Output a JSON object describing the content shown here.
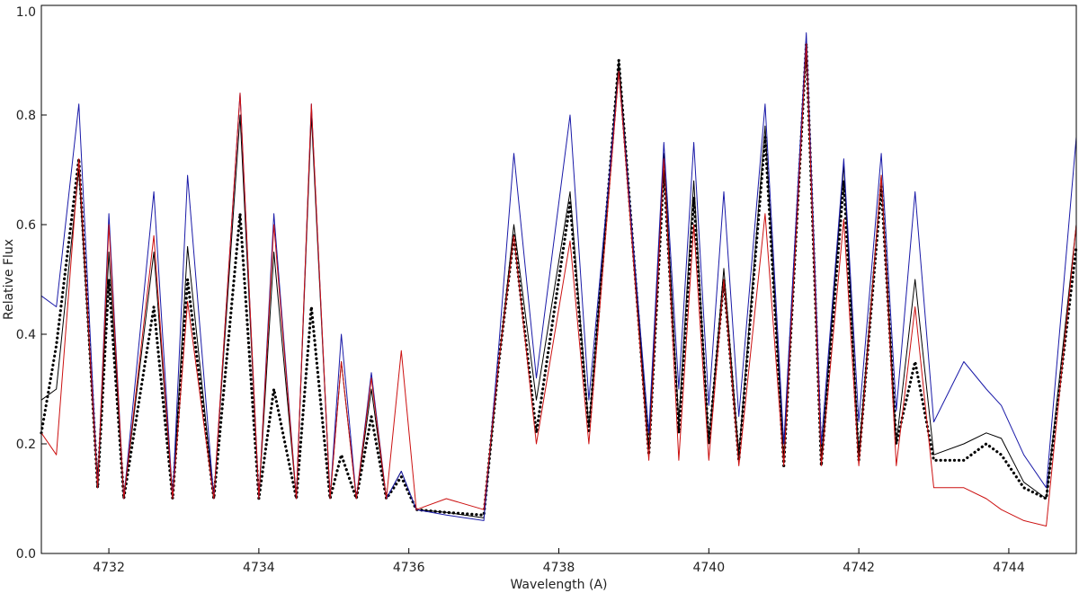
{
  "chart_data": {
    "type": "line",
    "title": "",
    "xlabel": "Wavelength (A)",
    "ylabel": "Relative Flux",
    "xlim": [
      4731.1,
      4744.9
    ],
    "ylim": [
      0.0,
      1.0
    ],
    "xticks": [
      4732,
      4734,
      4736,
      4738,
      4740,
      4742,
      4744
    ],
    "yticks": [
      0.0,
      0.2,
      0.4,
      0.6,
      0.8,
      1.0
    ],
    "ytick_labels": [
      "0.0",
      "0.2",
      "0.4",
      "0.6",
      "0.8",
      "1.0"
    ],
    "grid": false,
    "legend": "none",
    "series": [
      {
        "style": "dotted",
        "color": "#000000",
        "x": [
          4731.1,
          4731.3,
          4731.6,
          4731.85,
          4732.0,
          4732.2,
          4732.6,
          4732.85,
          4733.05,
          4733.4,
          4733.75,
          4734.0,
          4734.2,
          4734.5,
          4734.7,
          4734.95,
          4735.1,
          4735.3,
          4735.5,
          4735.7,
          4735.9,
          4736.1,
          4736.5,
          4737.0,
          4737.2,
          4737.4,
          4737.7,
          4738.15,
          4738.4,
          4738.8,
          4739.2,
          4739.4,
          4739.6,
          4739.8,
          4740.0,
          4740.2,
          4740.4,
          4740.75,
          4741.0,
          4741.3,
          4741.5,
          4741.8,
          4742.0,
          4742.3,
          4742.5,
          4742.75,
          4743.0,
          4743.4,
          4743.7,
          4743.9,
          4744.2,
          4744.5,
          4744.9
        ],
        "y": [
          0.22,
          0.38,
          0.72,
          0.12,
          0.5,
          0.1,
          0.45,
          0.1,
          0.5,
          0.1,
          0.62,
          0.1,
          0.3,
          0.1,
          0.45,
          0.1,
          0.18,
          0.1,
          0.25,
          0.1,
          0.14,
          0.08,
          0.075,
          0.07,
          0.35,
          0.58,
          0.22,
          0.64,
          0.22,
          0.9,
          0.18,
          0.7,
          0.22,
          0.65,
          0.2,
          0.5,
          0.17,
          0.76,
          0.16,
          0.93,
          0.16,
          0.68,
          0.17,
          0.67,
          0.2,
          0.35,
          0.17,
          0.17,
          0.2,
          0.18,
          0.12,
          0.1,
          0.56
        ]
      },
      {
        "style": "solid",
        "color": "#000000",
        "x": [
          4731.1,
          4731.3,
          4731.6,
          4731.85,
          4732.0,
          4732.2,
          4732.6,
          4732.85,
          4733.05,
          4733.4,
          4733.75,
          4734.0,
          4734.2,
          4734.5,
          4734.7,
          4734.95,
          4735.1,
          4735.3,
          4735.5,
          4735.7,
          4735.9,
          4736.1,
          4736.5,
          4737.0,
          4737.2,
          4737.4,
          4737.7,
          4738.15,
          4738.4,
          4738.8,
          4739.2,
          4739.4,
          4739.6,
          4739.8,
          4740.0,
          4740.2,
          4740.4,
          4740.75,
          4741.0,
          4741.3,
          4741.5,
          4741.8,
          4742.0,
          4742.3,
          4742.5,
          4742.75,
          4743.0,
          4743.4,
          4743.7,
          4743.9,
          4744.2,
          4744.5,
          4744.9
        ],
        "y": [
          0.28,
          0.3,
          0.7,
          0.12,
          0.55,
          0.1,
          0.55,
          0.1,
          0.56,
          0.1,
          0.8,
          0.1,
          0.55,
          0.1,
          0.8,
          0.1,
          0.35,
          0.1,
          0.3,
          0.1,
          0.15,
          0.08,
          0.075,
          0.065,
          0.35,
          0.6,
          0.28,
          0.66,
          0.23,
          0.9,
          0.19,
          0.73,
          0.24,
          0.68,
          0.2,
          0.52,
          0.18,
          0.78,
          0.17,
          0.94,
          0.17,
          0.71,
          0.18,
          0.69,
          0.2,
          0.5,
          0.18,
          0.2,
          0.22,
          0.21,
          0.13,
          0.1,
          0.6
        ]
      },
      {
        "style": "solid",
        "color": "#1a1aa8",
        "x": [
          4731.1,
          4731.3,
          4731.6,
          4731.85,
          4732.0,
          4732.2,
          4732.6,
          4732.85,
          4733.05,
          4733.4,
          4733.75,
          4734.0,
          4734.2,
          4734.5,
          4734.7,
          4734.95,
          4735.1,
          4735.3,
          4735.5,
          4735.7,
          4735.9,
          4736.1,
          4736.5,
          4737.0,
          4737.2,
          4737.4,
          4737.7,
          4738.15,
          4738.4,
          4738.8,
          4739.2,
          4739.4,
          4739.6,
          4739.8,
          4740.0,
          4740.2,
          4740.4,
          4740.75,
          4741.0,
          4741.3,
          4741.5,
          4741.8,
          4742.0,
          4742.3,
          4742.5,
          4742.75,
          4743.0,
          4743.4,
          4743.7,
          4743.9,
          4744.2,
          4744.5,
          4744.9
        ],
        "y": [
          0.47,
          0.45,
          0.82,
          0.12,
          0.62,
          0.1,
          0.66,
          0.1,
          0.69,
          0.1,
          0.84,
          0.1,
          0.62,
          0.1,
          0.82,
          0.1,
          0.4,
          0.1,
          0.33,
          0.1,
          0.15,
          0.08,
          0.07,
          0.06,
          0.38,
          0.73,
          0.32,
          0.8,
          0.28,
          0.88,
          0.22,
          0.75,
          0.3,
          0.75,
          0.27,
          0.66,
          0.25,
          0.82,
          0.2,
          0.95,
          0.2,
          0.72,
          0.24,
          0.73,
          0.26,
          0.66,
          0.24,
          0.35,
          0.3,
          0.27,
          0.18,
          0.12,
          0.76
        ]
      },
      {
        "style": "solid",
        "color": "#cc1111",
        "x": [
          4731.1,
          4731.3,
          4731.6,
          4731.85,
          4732.0,
          4732.2,
          4732.6,
          4732.85,
          4733.05,
          4733.4,
          4733.75,
          4734.0,
          4734.2,
          4734.5,
          4734.7,
          4734.95,
          4735.1,
          4735.3,
          4735.5,
          4735.7,
          4735.9,
          4736.1,
          4736.5,
          4737.0,
          4737.2,
          4737.4,
          4737.7,
          4738.15,
          4738.4,
          4738.8,
          4739.2,
          4739.4,
          4739.6,
          4739.8,
          4740.0,
          4740.2,
          4740.4,
          4740.75,
          4741.0,
          4741.3,
          4741.5,
          4741.8,
          4742.0,
          4742.3,
          4742.5,
          4742.75,
          4743.0,
          4743.4,
          4743.7,
          4743.9,
          4744.2,
          4744.5,
          4744.9
        ],
        "y": [
          0.22,
          0.18,
          0.72,
          0.12,
          0.6,
          0.1,
          0.58,
          0.1,
          0.46,
          0.1,
          0.84,
          0.1,
          0.6,
          0.1,
          0.82,
          0.1,
          0.35,
          0.1,
          0.32,
          0.1,
          0.37,
          0.08,
          0.1,
          0.08,
          0.35,
          0.58,
          0.2,
          0.57,
          0.2,
          0.88,
          0.17,
          0.72,
          0.17,
          0.6,
          0.17,
          0.5,
          0.16,
          0.62,
          0.16,
          0.93,
          0.16,
          0.61,
          0.16,
          0.69,
          0.16,
          0.45,
          0.12,
          0.12,
          0.1,
          0.08,
          0.06,
          0.05,
          0.6
        ]
      }
    ]
  }
}
